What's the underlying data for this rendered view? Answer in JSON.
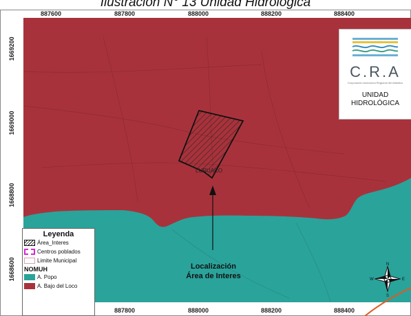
{
  "caption": "Ilustración N° 13 Unidad Hidrológica",
  "axes": {
    "x_ticks": [
      "887600",
      "887800",
      "888000",
      "888200",
      "888400"
    ],
    "y_ticks": [
      "1669200",
      "1669000",
      "1668800",
      "1668600"
    ]
  },
  "logo": {
    "name": "C.R.A",
    "subtitle": "Corporación Autónoma Regional del Atlántico",
    "title_line1": "UNIDAD",
    "title_line2": "HIDROLÓGICA"
  },
  "legend": {
    "title": "Leyenda",
    "items": [
      "Área_Interes",
      "Centros poblados",
      "Limite Municipal"
    ],
    "group_title": "NOMUH",
    "units": [
      {
        "label": "A. Popo",
        "color": "#2aa39b"
      },
      {
        "label": "A. Bajo del Loco",
        "color": "#a8323b"
      }
    ]
  },
  "place_label": "LURUACO",
  "annotation": {
    "line1": "Localización",
    "line2": "Área de Interes"
  },
  "colors": {
    "bajo_del_loco": "#a8323b",
    "popo": "#2aa39b",
    "area_outline": "#111111",
    "poblados": "#d22bd0"
  }
}
